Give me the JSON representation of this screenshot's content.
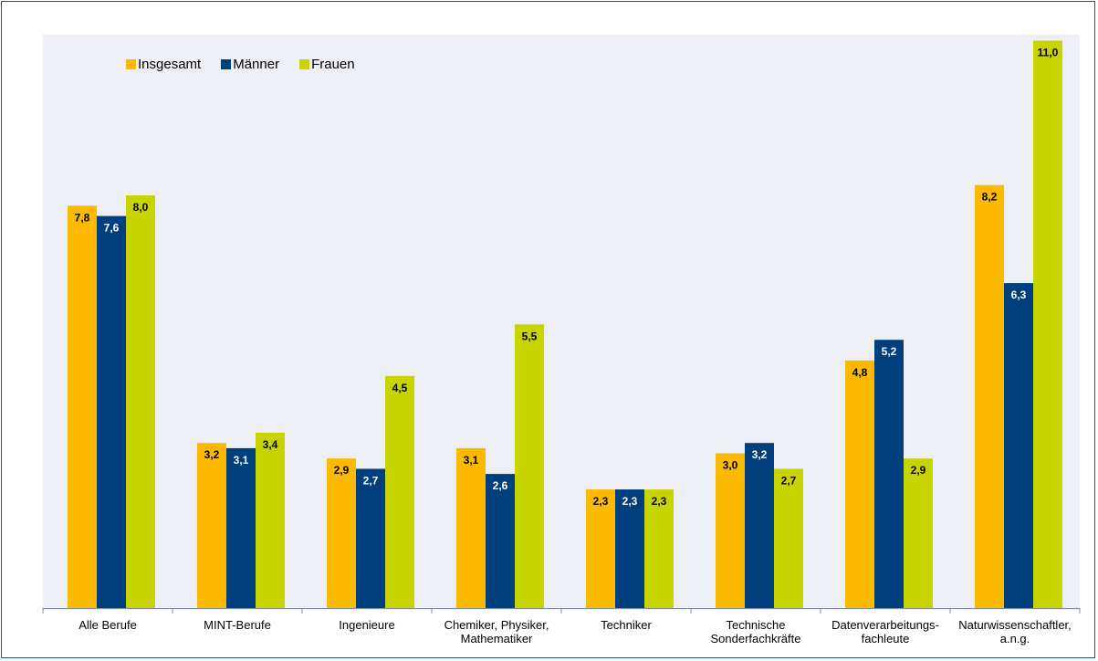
{
  "chart_data": {
    "type": "bar",
    "categories": [
      [
        "Alle Berufe"
      ],
      [
        "MINT-Berufe"
      ],
      [
        "Ingenieure"
      ],
      [
        "Chemiker, Physiker,",
        "Mathematiker"
      ],
      [
        "Techniker"
      ],
      [
        "Technische",
        "Sonderfachkräfte"
      ],
      [
        "Datenverarbeitungs-",
        "fachleute"
      ],
      [
        "Naturwissenschaftler,",
        "a.n.g."
      ]
    ],
    "series": [
      {
        "name": "Insgesamt",
        "color": "#fbb900",
        "values": [
          7.8,
          3.2,
          2.9,
          3.1,
          2.3,
          3.0,
          4.8,
          8.2
        ],
        "labels": [
          "7,8",
          "3,2",
          "2,9",
          "3,1",
          "2,3",
          "3,0",
          "4,8",
          "8,2"
        ]
      },
      {
        "name": "Männer",
        "color": "#003f7d",
        "values": [
          7.6,
          3.1,
          2.7,
          2.6,
          2.3,
          3.2,
          5.2,
          6.3
        ],
        "labels": [
          "7,6",
          "3,1",
          "2,7",
          "2,6",
          "2,3",
          "3,2",
          "5,2",
          "6,3"
        ]
      },
      {
        "name": "Frauen",
        "color": "#c8d400",
        "values": [
          8.0,
          3.4,
          4.5,
          5.5,
          2.3,
          2.7,
          2.9,
          11.0
        ],
        "labels": [
          "8,0",
          "3,4",
          "4,5",
          "5,5",
          "2,3",
          "2,7",
          "2,9",
          "11,0"
        ]
      }
    ],
    "ylim": [
      0,
      11.7
    ],
    "grid": false,
    "legend_position": "top-left",
    "background_color": "#eeeff5",
    "axis_color": "#7f8ea3"
  }
}
